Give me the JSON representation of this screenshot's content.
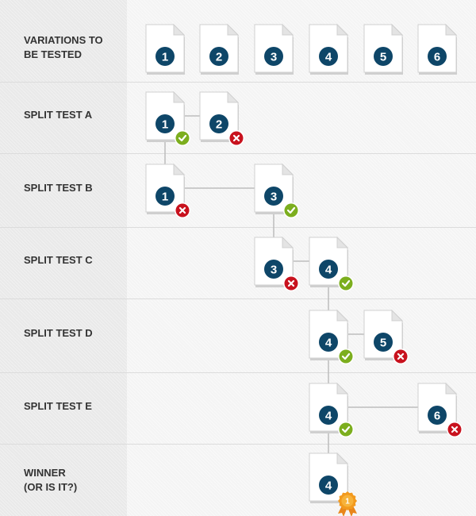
{
  "rows": [
    {
      "label": "VARIATIONS TO\nBE TESTED"
    },
    {
      "label": "SPLIT TEST A"
    },
    {
      "label": "SPLIT TEST B"
    },
    {
      "label": "SPLIT TEST C"
    },
    {
      "label": "SPLIT TEST D"
    },
    {
      "label": "SPLIT TEST E"
    },
    {
      "label": "WINNER\n(OR IS IT?)"
    }
  ],
  "variations": [
    "1",
    "2",
    "3",
    "4",
    "5",
    "6"
  ],
  "tests": [
    {
      "name": "SPLIT TEST A",
      "docs": [
        {
          "num": "1",
          "result": "win"
        },
        {
          "num": "2",
          "result": "lose"
        }
      ]
    },
    {
      "name": "SPLIT TEST B",
      "docs": [
        {
          "num": "1",
          "result": "lose"
        },
        {
          "num": "3",
          "result": "win"
        }
      ]
    },
    {
      "name": "SPLIT TEST C",
      "docs": [
        {
          "num": "3",
          "result": "lose"
        },
        {
          "num": "4",
          "result": "win"
        }
      ]
    },
    {
      "name": "SPLIT TEST D",
      "docs": [
        {
          "num": "4",
          "result": "win"
        },
        {
          "num": "5",
          "result": "lose"
        }
      ]
    },
    {
      "name": "SPLIT TEST E",
      "docs": [
        {
          "num": "4",
          "result": "win"
        },
        {
          "num": "6",
          "result": "lose"
        }
      ]
    }
  ],
  "winner": {
    "num": "4",
    "medal_label": "1"
  },
  "colors": {
    "circle": "#0e4668",
    "win": "#7cae1e",
    "lose": "#c8121e",
    "medal": "#f39a1e",
    "connector": "#bdbdbd"
  }
}
